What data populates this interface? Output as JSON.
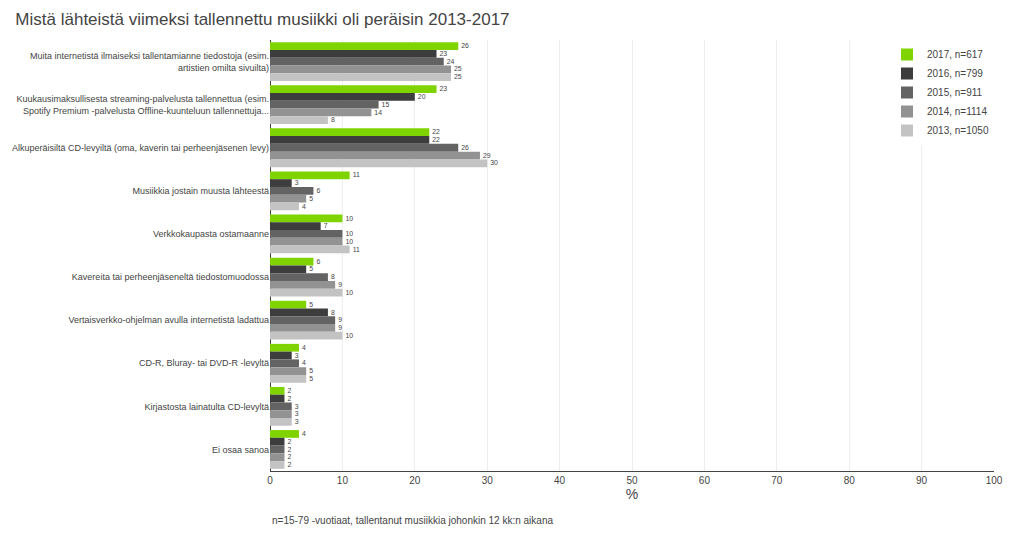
{
  "chart_data": {
    "type": "bar",
    "orientation": "horizontal",
    "title": "Mistä lähteistä viimeksi tallennettu musiikki oli peräisin 2013-2017",
    "categories": [
      "Muita internetistä ilmaiseksi tallentamianne tiedostoja (esim.\nartistien omilta sivuilta)",
      "Kuukausimaksullisesta streaming-palvelusta tallennettua (esim.\nSpotify Premium -palvelusta Offline-kuunteluun tallennettuja...",
      "Alkuperäisiltä CD-levyiltä (oma, kaverin tai perheenjäsenen levy)",
      "Musiikkia jostain muusta lähteestä",
      "Verkkokaupasta ostamaanne",
      "Kavereita tai perheenjäseneltä tiedostomuodossa",
      "Vertaisverkko-ohjelman avulla internetistä ladattua",
      "CD-R, Bluray- tai DVD-R -levyltä",
      "Kirjastosta lainatulta CD-levyltä",
      "Ei osaa sanoa"
    ],
    "series": [
      {
        "name": "2017, n=617",
        "color": "#7fd400",
        "values": [
          26,
          23,
          22,
          11,
          10,
          6,
          5,
          4,
          2,
          4
        ]
      },
      {
        "name": "2016, n=799",
        "color": "#3d3d3d",
        "values": [
          23,
          20,
          22,
          3,
          7,
          5,
          8,
          3,
          2,
          2
        ]
      },
      {
        "name": "2015, n=911",
        "color": "#636363",
        "values": [
          24,
          15,
          26,
          6,
          10,
          8,
          9,
          4,
          3,
          2
        ]
      },
      {
        "name": "2014, n=1114",
        "color": "#929292",
        "values": [
          25,
          14,
          29,
          5,
          10,
          9,
          9,
          5,
          3,
          2
        ]
      },
      {
        "name": "2013, n=1050",
        "color": "#c3c3c3",
        "values": [
          25,
          8,
          30,
          4,
          11,
          10,
          10,
          5,
          3,
          2
        ]
      }
    ],
    "xlabel": "%",
    "xlim": [
      0,
      100
    ],
    "xticks": [
      0,
      10,
      20,
      30,
      40,
      50,
      60,
      70,
      80,
      90,
      100
    ],
    "grid": true,
    "data_labels": true,
    "legend": "upper right",
    "annotations": [
      "n=15-79 -vuotiaat, tallentanut musiikkia johonkin 12 kk:n aikana"
    ]
  }
}
